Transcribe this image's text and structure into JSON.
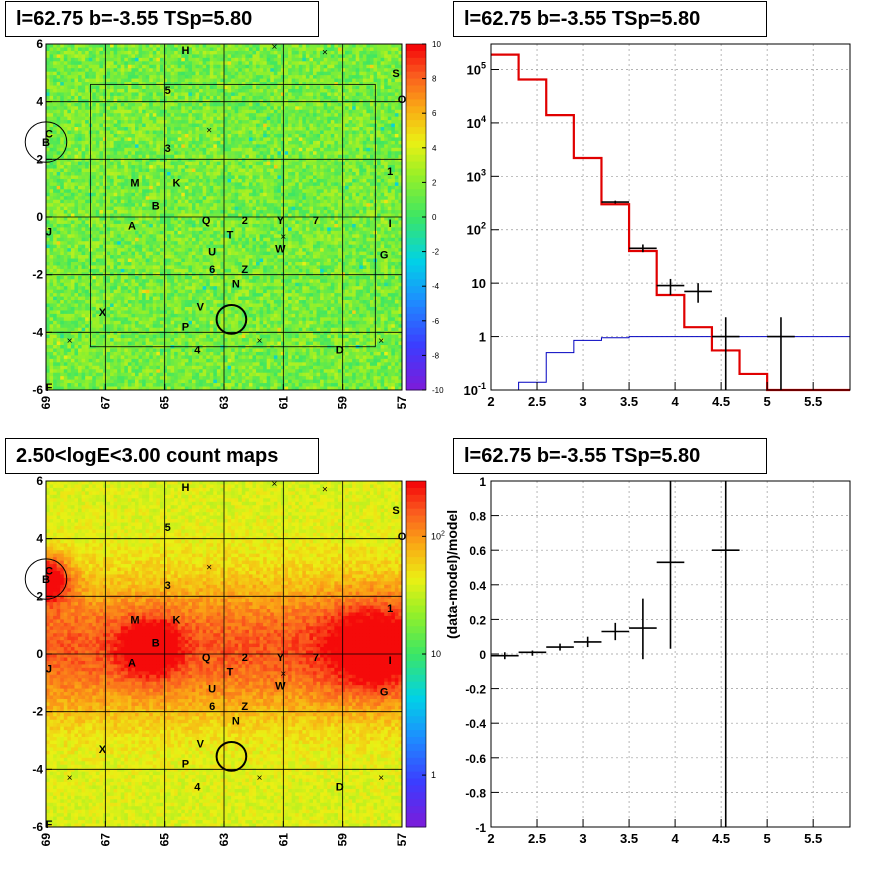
{
  "titles": {
    "top_left": "l=62.75 b=-3.55 TSp=5.80",
    "top_right": "l=62.75 b=-3.55 TSp=5.80",
    "bottom_left": "2.50<logE<3.00 count maps",
    "bottom_right": "l=62.75 b=-3.55 TSp=5.80"
  },
  "colors": {
    "model_line": "#e00000",
    "background_line": "#0000c0",
    "data_marker": "#000000"
  },
  "chart_data": [
    {
      "type": "heatmap",
      "name": "residual-map",
      "x_ticks": [
        "69",
        "67",
        "65",
        "63",
        "61",
        "59",
        "57"
      ],
      "y_ticks": [
        "6",
        "4",
        "2",
        "0",
        "-2",
        "-4",
        "-6"
      ],
      "xlim": [
        69,
        57
      ],
      "ylim": [
        -6,
        6
      ],
      "colorbar_ticks": [
        "10",
        "8",
        "6",
        "4",
        "2",
        "0",
        "-2",
        "-4",
        "-6",
        "-8",
        "-10"
      ],
      "colorbar_range": [
        -10,
        10
      ],
      "source_labels": [
        {
          "t": "H",
          "l": 64.3,
          "b": 5.8
        },
        {
          "t": "S",
          "l": 57.2,
          "b": 5.0
        },
        {
          "t": "O",
          "l": 57.0,
          "b": 4.1
        },
        {
          "t": "5",
          "l": 64.9,
          "b": 4.4
        },
        {
          "t": "C",
          "l": 68.9,
          "b": 2.9
        },
        {
          "t": "B",
          "l": 69.0,
          "b": 2.6
        },
        {
          "t": "3",
          "l": 64.9,
          "b": 2.4
        },
        {
          "t": "1",
          "l": 57.4,
          "b": 1.6
        },
        {
          "t": "M",
          "l": 66.0,
          "b": 1.2
        },
        {
          "t": "K",
          "l": 64.6,
          "b": 1.2
        },
        {
          "t": "B",
          "l": 65.3,
          "b": 0.4
        },
        {
          "t": "A",
          "l": 66.1,
          "b": -0.3
        },
        {
          "t": "J",
          "l": 68.9,
          "b": -0.5
        },
        {
          "t": "Q",
          "l": 63.6,
          "b": -0.1
        },
        {
          "t": "2",
          "l": 62.3,
          "b": -0.1
        },
        {
          "t": "Y",
          "l": 61.1,
          "b": -0.1
        },
        {
          "t": "7",
          "l": 59.9,
          "b": -0.1
        },
        {
          "t": "T",
          "l": 62.8,
          "b": -0.6
        },
        {
          "t": "I",
          "l": 57.4,
          "b": -0.2
        },
        {
          "t": "W",
          "l": 61.1,
          "b": -1.1
        },
        {
          "t": "G",
          "l": 57.6,
          "b": -1.3
        },
        {
          "t": "U",
          "l": 63.4,
          "b": -1.2
        },
        {
          "t": "6",
          "l": 63.4,
          "b": -1.8
        },
        {
          "t": "Z",
          "l": 62.3,
          "b": -1.8
        },
        {
          "t": "N",
          "l": 62.6,
          "b": -2.3
        },
        {
          "t": "X",
          "l": 67.1,
          "b": -3.3
        },
        {
          "t": "V",
          "l": 63.8,
          "b": -3.1
        },
        {
          "t": "P",
          "l": 64.3,
          "b": -3.8
        },
        {
          "t": "4",
          "l": 63.9,
          "b": -4.6
        },
        {
          "t": "D",
          "l": 59.1,
          "b": -4.6
        },
        {
          "t": "F",
          "l": 68.9,
          "b": -5.9
        }
      ],
      "crosses": [
        [
          61.3,
          5.9
        ],
        [
          59.6,
          5.7
        ],
        [
          63.5,
          3.0
        ],
        [
          68.2,
          -4.3
        ],
        [
          61.8,
          -4.3
        ],
        [
          57.7,
          -4.3
        ],
        [
          61.0,
          -0.7
        ]
      ],
      "roi_circle": {
        "l": 62.75,
        "b": -3.55,
        "r": 0.5
      },
      "roi_circle_2": {
        "l": 69.0,
        "b": 2.6,
        "r": 0.7
      }
    },
    {
      "type": "line",
      "name": "spectrum",
      "y_scale": "log",
      "xlim": [
        2,
        5.9
      ],
      "ylim": [
        0.1,
        300000
      ],
      "x_ticks": [
        "2",
        "2.5",
        "3",
        "3.5",
        "4",
        "4.5",
        "5",
        "5.5"
      ],
      "y_ticks": [
        "10^5",
        "10^4",
        "10^3",
        "10^2",
        "10",
        "1",
        "10^-1"
      ],
      "edges": [
        2.0,
        2.3,
        2.6,
        2.9,
        3.2,
        3.5,
        3.8,
        4.1,
        4.4,
        4.7,
        5.0,
        5.3,
        5.9
      ],
      "model": [
        190000,
        65000,
        14000,
        2200,
        300,
        40,
        6,
        1.5,
        0.55,
        0.2,
        0.1,
        0.1
      ],
      "background": [
        0.1,
        0.14,
        0.5,
        0.85,
        0.95,
        1.0,
        1.0,
        1.0,
        1.0,
        1.0,
        1.0,
        1.0
      ],
      "data_points": [
        {
          "x": 3.35,
          "y": 330,
          "xerr": 0.15,
          "ylo": 310,
          "yhi": 350
        },
        {
          "x": 3.65,
          "y": 45,
          "xerr": 0.15,
          "ylo": 38,
          "yhi": 53
        },
        {
          "x": 3.95,
          "y": 9,
          "xerr": 0.15,
          "ylo": 6,
          "yhi": 12
        },
        {
          "x": 4.25,
          "y": 7,
          "xerr": 0.15,
          "ylo": 4.3,
          "yhi": 10
        },
        {
          "x": 4.55,
          "y": 1,
          "xerr": 0.15,
          "ylo": 0.1,
          "yhi": 2.3
        },
        {
          "x": 5.15,
          "y": 1,
          "xerr": 0.15,
          "ylo": 0.1,
          "yhi": 2.3
        }
      ]
    },
    {
      "type": "heatmap",
      "name": "count-map",
      "x_ticks": [
        "69",
        "67",
        "65",
        "63",
        "61",
        "59",
        "57"
      ],
      "y_ticks": [
        "6",
        "4",
        "2",
        "0",
        "-2",
        "-4",
        "-6"
      ],
      "xlim": [
        69,
        57
      ],
      "ylim": [
        -6,
        6
      ],
      "colorbar_ticks": [
        "10^2",
        "10",
        "1"
      ],
      "colorbar_scale": "log"
    },
    {
      "type": "scatter",
      "name": "residuals",
      "xlim": [
        2,
        5.9
      ],
      "ylim": [
        -1,
        1
      ],
      "ylabel": "(data-model)/model",
      "x_ticks": [
        "2",
        "2.5",
        "3",
        "3.5",
        "4",
        "4.5",
        "5",
        "5.5"
      ],
      "y_ticks": [
        "1",
        "0.8",
        "0.6",
        "0.4",
        "0.2",
        "0",
        "-0.2",
        "-0.4",
        "-0.6",
        "-0.8",
        "-1"
      ],
      "points": [
        {
          "x": 2.15,
          "y": -0.01,
          "xerr": 0.15,
          "ylo": -0.03,
          "yhi": 0.01
        },
        {
          "x": 2.45,
          "y": 0.01,
          "xerr": 0.15,
          "ylo": -0.01,
          "yhi": 0.02
        },
        {
          "x": 2.75,
          "y": 0.04,
          "xerr": 0.15,
          "ylo": 0.02,
          "yhi": 0.06
        },
        {
          "x": 3.05,
          "y": 0.07,
          "xerr": 0.15,
          "ylo": 0.04,
          "yhi": 0.1
        },
        {
          "x": 3.35,
          "y": 0.13,
          "xerr": 0.15,
          "ylo": 0.08,
          "yhi": 0.18
        },
        {
          "x": 3.65,
          "y": 0.15,
          "xerr": 0.15,
          "ylo": -0.03,
          "yhi": 0.32
        },
        {
          "x": 3.95,
          "y": 0.53,
          "xerr": 0.15,
          "ylo": 0.03,
          "yhi": 1.0
        },
        {
          "x": 4.55,
          "y": 0.6,
          "xerr": 0.15,
          "ylo": -1.0,
          "yhi": 1.0
        }
      ]
    }
  ]
}
